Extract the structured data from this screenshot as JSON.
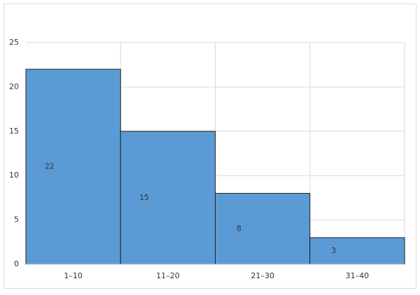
{
  "chart_data": {
    "type": "bar",
    "categories": [
      "1–10",
      "11–20",
      "21–30",
      "31–40"
    ],
    "values": [
      22,
      15,
      8,
      3
    ],
    "color": "#5b9bd5",
    "edge_color": "#1f1f1f",
    "ylim": [
      0,
      25
    ],
    "yticks": [
      0,
      5,
      10,
      15,
      20,
      25
    ],
    "grid": true,
    "data_labels": true
  }
}
